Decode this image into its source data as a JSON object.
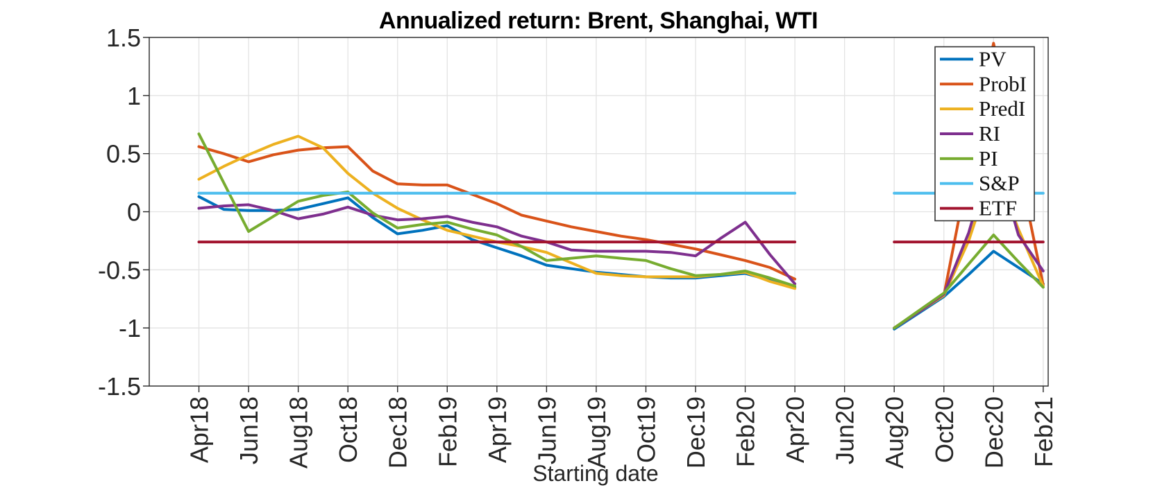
{
  "title": "Annualized return: Brent, Shanghai, WTI",
  "xlabel": "Starting date",
  "chart_data": {
    "type": "line",
    "title": "Annualized return: Brent, Shanghai, WTI",
    "xlabel": "Starting date",
    "ylabel": "",
    "grid": true,
    "ylim": [
      -1.5,
      1.5
    ],
    "xlim_months": [
      -2,
      34.2
    ],
    "y_ticks": [
      1.5,
      1,
      0.5,
      0,
      -0.5,
      -1,
      -1.5
    ],
    "y_tick_labels": [
      "1.5",
      "1",
      "0.5",
      "0",
      "-0.5",
      "-1",
      "-1.5"
    ],
    "x_tick_positions": [
      0,
      2,
      4,
      6,
      8,
      10,
      12,
      14,
      16,
      18,
      20,
      22,
      24,
      26,
      28,
      30,
      32,
      34
    ],
    "x_tick_labels": [
      "Apr18",
      "Jun18",
      "Aug18",
      "Oct18",
      "Dec18",
      "Feb19",
      "Apr19",
      "Jun19",
      "Aug19",
      "Oct19",
      "Dec19",
      "Feb20",
      "Apr20",
      "Jun20",
      "Aug20",
      "Oct20",
      "Dec20",
      "Feb21"
    ],
    "months": [
      "Apr18",
      "May18",
      "Jun18",
      "Jul18",
      "Aug18",
      "Sep18",
      "Oct18",
      "Nov18",
      "Dec18",
      "Jan19",
      "Feb19",
      "Mar19",
      "Apr19",
      "May19",
      "Jun19",
      "Jul19",
      "Aug19",
      "Sep19",
      "Oct19",
      "Nov19",
      "Dec19",
      "Jan20",
      "Feb20",
      "Mar20",
      "Apr20",
      "May20",
      "Jun20",
      "Jul20",
      "Aug20",
      "Sep20",
      "Oct20",
      "Nov20",
      "Dec20",
      "Jan21",
      "Feb21"
    ],
    "legend": {
      "position": "top-right"
    },
    "series": [
      {
        "name": "PV",
        "color": "#0072BD",
        "values": [
          0.13,
          0.02,
          0.01,
          0.01,
          0.02,
          0.07,
          0.12,
          -0.05,
          -0.19,
          -0.16,
          -0.12,
          -0.24,
          -0.31,
          -0.38,
          -0.46,
          -0.49,
          -0.52,
          -0.54,
          -0.56,
          -0.57,
          -0.57,
          -0.55,
          -0.53,
          -0.59,
          -0.65,
          null,
          null,
          null,
          -1.01,
          -0.87,
          -0.73,
          -0.54,
          -0.34,
          -0.48,
          -0.62
        ]
      },
      {
        "name": "ProbI",
        "color": "#D95319",
        "values": [
          0.56,
          0.5,
          0.43,
          0.49,
          0.53,
          0.55,
          0.56,
          0.35,
          0.24,
          0.23,
          0.23,
          0.15,
          0.07,
          -0.03,
          -0.08,
          -0.13,
          -0.17,
          -0.21,
          -0.24,
          -0.28,
          -0.32,
          -0.37,
          -0.42,
          -0.48,
          -0.58,
          null,
          null,
          null,
          -1.0,
          -0.86,
          -0.72,
          0.37,
          1.45,
          0.41,
          -0.63
        ]
      },
      {
        "name": "PredI",
        "color": "#EDB120",
        "values": [
          0.28,
          0.39,
          0.49,
          0.58,
          0.65,
          0.55,
          0.33,
          0.16,
          0.03,
          -0.07,
          -0.16,
          -0.21,
          -0.26,
          -0.3,
          -0.35,
          -0.44,
          -0.53,
          -0.55,
          -0.56,
          -0.56,
          -0.56,
          -0.54,
          -0.52,
          -0.6,
          -0.66,
          null,
          null,
          null,
          -1.0,
          -0.86,
          -0.72,
          -0.25,
          0.4,
          -0.15,
          -0.64
        ]
      },
      {
        "name": "RI",
        "color": "#7E2F8E",
        "values": [
          0.03,
          0.05,
          0.06,
          0.01,
          -0.06,
          -0.02,
          0.04,
          -0.03,
          -0.07,
          -0.06,
          -0.04,
          -0.09,
          -0.13,
          -0.21,
          -0.26,
          -0.33,
          -0.34,
          -0.34,
          -0.34,
          -0.35,
          -0.38,
          -0.23,
          -0.09,
          -0.37,
          -0.62,
          null,
          null,
          null,
          -1.0,
          -0.86,
          -0.71,
          -0.18,
          0.55,
          -0.2,
          -0.51
        ]
      },
      {
        "name": "PI",
        "color": "#77AC30",
        "values": [
          0.67,
          0.25,
          -0.17,
          -0.04,
          0.09,
          0.14,
          0.17,
          -0.01,
          -0.14,
          -0.11,
          -0.09,
          -0.15,
          -0.2,
          -0.3,
          -0.42,
          -0.4,
          -0.38,
          -0.4,
          -0.42,
          -0.49,
          -0.55,
          -0.54,
          -0.51,
          -0.57,
          -0.64,
          null,
          null,
          null,
          -1.0,
          -0.85,
          -0.7,
          -0.45,
          -0.2,
          -0.43,
          -0.65
        ]
      },
      {
        "name": "S&P",
        "color": "#4DBEEE",
        "values": [
          0.16,
          0.16,
          0.16,
          0.16,
          0.16,
          0.16,
          0.16,
          0.16,
          0.16,
          0.16,
          0.16,
          0.16,
          0.16,
          0.16,
          0.16,
          0.16,
          0.16,
          0.16,
          0.16,
          0.16,
          0.16,
          0.16,
          0.16,
          0.16,
          0.16,
          null,
          null,
          null,
          0.16,
          0.16,
          0.16,
          0.16,
          0.16,
          0.16,
          0.16
        ]
      },
      {
        "name": "ETF",
        "color": "#A2142F",
        "values": [
          -0.26,
          -0.26,
          -0.26,
          -0.26,
          -0.26,
          -0.26,
          -0.26,
          -0.26,
          -0.26,
          -0.26,
          -0.26,
          -0.26,
          -0.26,
          -0.26,
          -0.26,
          -0.26,
          -0.26,
          -0.26,
          -0.26,
          -0.26,
          -0.26,
          -0.26,
          -0.26,
          -0.26,
          -0.26,
          null,
          null,
          null,
          -0.26,
          -0.26,
          -0.26,
          -0.26,
          -0.26,
          -0.26,
          -0.26
        ]
      }
    ],
    "axis_color": "#262626",
    "grid_color": "#e3e3e3"
  }
}
